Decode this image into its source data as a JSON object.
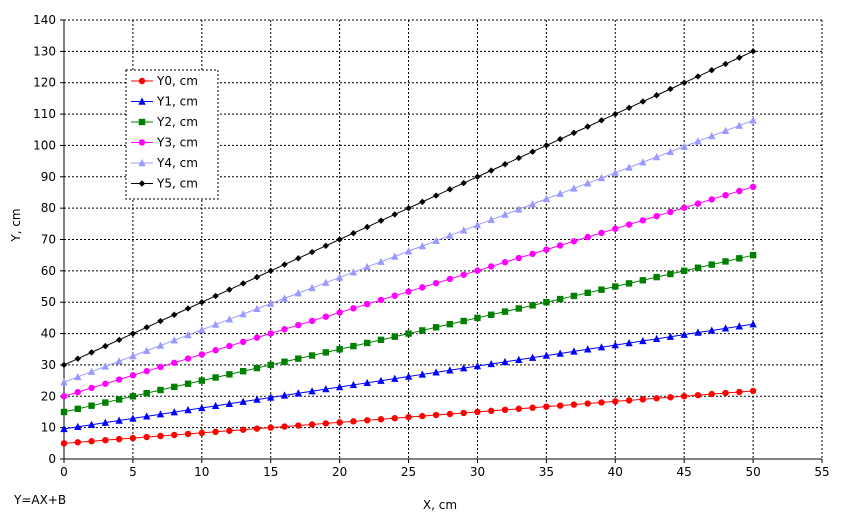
{
  "chart_data": {
    "type": "line",
    "xlabel": "X, cm",
    "ylabel": "Y, cm",
    "formula": "Y=AX+B",
    "xlim": [
      0,
      55
    ],
    "ylim": [
      0,
      140
    ],
    "xticks": [
      0,
      5,
      10,
      15,
      20,
      25,
      30,
      35,
      40,
      45,
      50,
      55
    ],
    "yticks": [
      0,
      10,
      20,
      30,
      40,
      50,
      60,
      70,
      80,
      90,
      100,
      110,
      120,
      130,
      140
    ],
    "grid": true,
    "legend_position": "top-left",
    "x_range": {
      "start": 0,
      "end": 50,
      "step": 1
    },
    "series": [
      {
        "name": "Y0, cm",
        "slope": 0.334,
        "intercept": 5,
        "color": "#ff0000",
        "marker": "circle"
      },
      {
        "name": "Y1, cm",
        "slope": 0.668,
        "intercept": 9.6,
        "color": "#0000ff",
        "marker": "triangle"
      },
      {
        "name": "Y2, cm",
        "slope": 1.0,
        "intercept": 15,
        "color": "#008000",
        "marker": "square"
      },
      {
        "name": "Y3, cm",
        "slope": 1.336,
        "intercept": 20,
        "color": "#ff00ff",
        "marker": "circle"
      },
      {
        "name": "Y4, cm",
        "slope": 1.67,
        "intercept": 24.5,
        "color": "#9999ff",
        "marker": "triangle"
      },
      {
        "name": "Y5, cm",
        "slope": 2.0,
        "intercept": 30,
        "color": "#000000",
        "marker": "diamond"
      }
    ]
  }
}
